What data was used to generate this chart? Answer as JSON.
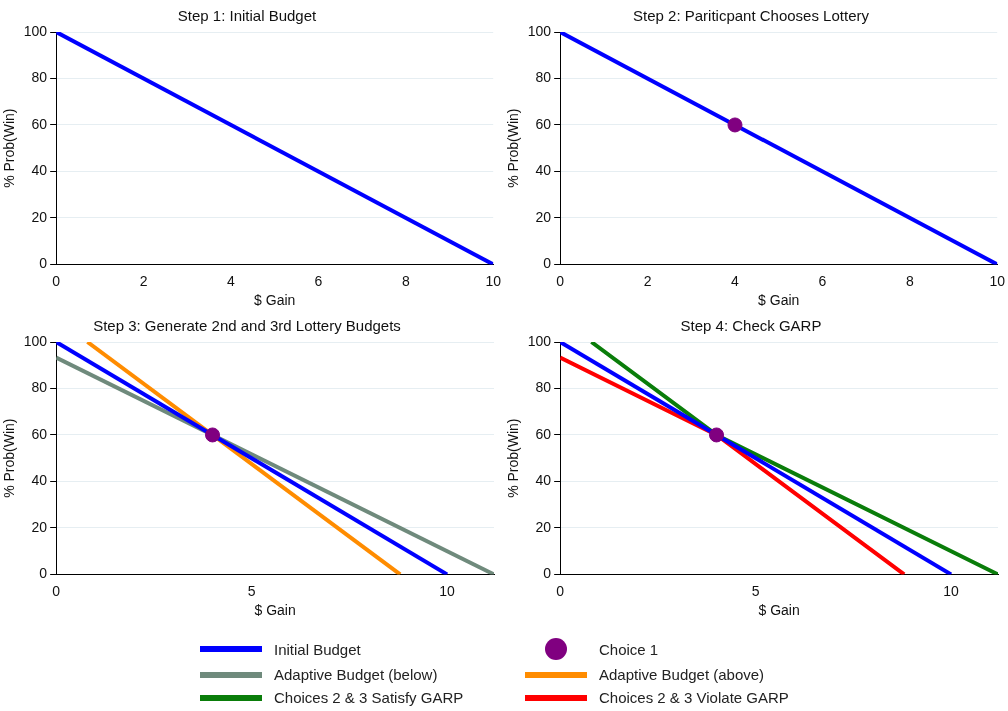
{
  "chart_data": [
    {
      "type": "line",
      "title": "Step 1: Initial Budget",
      "xlabel": "$ Gain",
      "ylabel": "% Prob(Win)",
      "xlim": [
        0,
        10
      ],
      "xticks": [
        0,
        2,
        4,
        6,
        8,
        10
      ],
      "ylim": [
        0,
        100
      ],
      "yticks": [
        0,
        20,
        40,
        60,
        80,
        100
      ],
      "grid": "y",
      "series": [
        {
          "color": "#0000ff",
          "x": [
            0,
            10
          ],
          "values": [
            100,
            0
          ]
        }
      ]
    },
    {
      "type": "line",
      "title": "Step 2: Pariticpant Chooses Lottery",
      "xlabel": "$ Gain",
      "ylabel": "% Prob(Win)",
      "xlim": [
        0,
        10
      ],
      "xticks": [
        0,
        2,
        4,
        6,
        8,
        10
      ],
      "ylim": [
        0,
        100
      ],
      "yticks": [
        0,
        20,
        40,
        60,
        80,
        100
      ],
      "grid": "y",
      "series": [
        {
          "color": "#0000ff",
          "x": [
            0,
            10
          ],
          "values": [
            100,
            0
          ]
        },
        {
          "type": "scatter",
          "marker": "circle",
          "color": "#800080",
          "x": [
            4
          ],
          "values": [
            60
          ]
        }
      ]
    },
    {
      "type": "line",
      "title": "Step 3: Generate 2nd and 3rd Lottery Budgets",
      "xlabel": "$ Gain",
      "ylabel": "% Prob(Win)",
      "xlim": [
        0,
        11.2
      ],
      "xticks": [
        0,
        5,
        10
      ],
      "ylim": [
        0,
        100
      ],
      "yticks": [
        0,
        20,
        40,
        60,
        80,
        100
      ],
      "grid": "y",
      "legend": "bottom",
      "series": [
        {
          "name": "Initial Budget",
          "color": "#0000ff",
          "x": [
            0,
            10
          ],
          "values": [
            100,
            0
          ]
        },
        {
          "type": "scatter",
          "marker": "circle",
          "name": "Choice 1",
          "color": "#800080",
          "x": [
            4
          ],
          "values": [
            60
          ]
        },
        {
          "name": "Adaptive Budget (below)",
          "color": "#6f8a7c",
          "x": [
            0,
            11.2
          ],
          "values": [
            93.3,
            0
          ]
        },
        {
          "name": "Adaptive Budget (above)",
          "color": "#ff8c00",
          "x": [
            0.8,
            8.8
          ],
          "values": [
            100,
            0
          ]
        }
      ]
    },
    {
      "type": "line",
      "title": "Step 4: Check GARP",
      "xlabel": "$ Gain",
      "ylabel": "% Prob(Win)",
      "xlim": [
        0,
        11.2
      ],
      "xticks": [
        0,
        5,
        10
      ],
      "ylim": [
        0,
        100
      ],
      "yticks": [
        0,
        20,
        40,
        60,
        80,
        100
      ],
      "grid": "y",
      "legend": "bottom",
      "series": [
        {
          "color": "#0000ff",
          "x": [
            0,
            10
          ],
          "values": [
            100,
            0
          ]
        },
        {
          "name": "Choices 2 & 3 Satisfy GARP",
          "color": "#0a7d0a",
          "x": [
            0.8,
            4,
            11.2
          ],
          "values": [
            100,
            60,
            0
          ]
        },
        {
          "name": "Choices 2 & 3 Violate GARP",
          "color": "#ff0000",
          "x": [
            0,
            4,
            8.8
          ],
          "values": [
            93.3,
            60,
            0
          ]
        },
        {
          "type": "scatter",
          "marker": "circle",
          "color": "#800080",
          "x": [
            4
          ],
          "values": [
            60
          ]
        }
      ]
    }
  ]
}
